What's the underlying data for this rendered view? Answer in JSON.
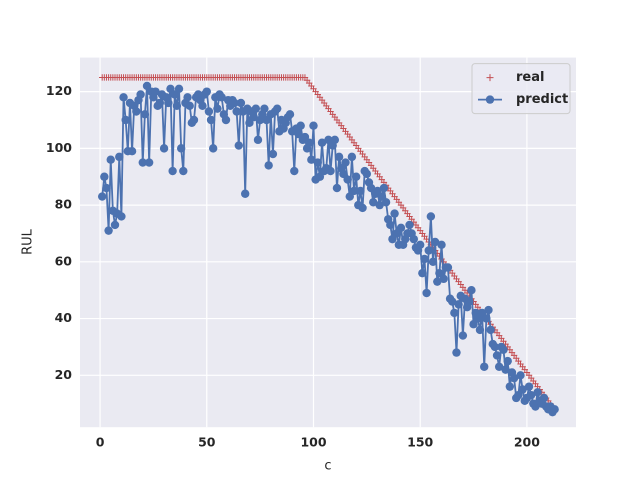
{
  "chart_data": {
    "type": "line",
    "xlabel": "c",
    "ylabel": "RUL",
    "x": [
      1,
      2,
      3,
      4,
      5,
      6,
      7,
      8,
      9,
      10,
      11,
      12,
      13,
      14,
      15,
      16,
      17,
      18,
      19,
      20,
      21,
      22,
      23,
      24,
      25,
      26,
      27,
      28,
      29,
      30,
      31,
      32,
      33,
      34,
      35,
      36,
      37,
      38,
      39,
      40,
      41,
      42,
      43,
      44,
      45,
      46,
      47,
      48,
      49,
      50,
      51,
      52,
      53,
      54,
      55,
      56,
      57,
      58,
      59,
      60,
      61,
      62,
      63,
      64,
      65,
      66,
      67,
      68,
      69,
      70,
      71,
      72,
      73,
      74,
      75,
      76,
      77,
      78,
      79,
      80,
      81,
      82,
      83,
      84,
      85,
      86,
      87,
      88,
      89,
      90,
      91,
      92,
      93,
      94,
      95,
      96,
      97,
      98,
      99,
      100,
      101,
      102,
      103,
      104,
      105,
      106,
      107,
      108,
      109,
      110,
      111,
      112,
      113,
      114,
      115,
      116,
      117,
      118,
      119,
      120,
      121,
      122,
      123,
      124,
      125,
      126,
      127,
      128,
      129,
      130,
      131,
      132,
      133,
      134,
      135,
      136,
      137,
      138,
      139,
      140,
      141,
      142,
      143,
      144,
      145,
      146,
      147,
      148,
      149,
      150,
      151,
      152,
      153,
      154,
      155,
      156,
      157,
      158,
      159,
      160,
      161,
      162,
      163,
      164,
      165,
      166,
      167,
      168,
      169,
      170,
      171,
      172,
      173,
      174,
      175,
      176,
      177,
      178,
      179,
      180,
      181,
      182,
      183,
      184,
      185,
      186,
      187,
      188,
      189,
      190,
      191,
      192,
      193,
      194,
      195,
      196,
      197,
      198,
      199,
      200,
      201,
      202,
      203,
      204,
      205,
      206,
      207,
      208,
      209,
      210,
      211,
      212,
      213
    ],
    "series": [
      {
        "name": "real",
        "color": "#c44e52",
        "marker": "plus",
        "values": [
          125,
          125,
          125,
          125,
          125,
          125,
          125,
          125,
          125,
          125,
          125,
          125,
          125,
          125,
          125,
          125,
          125,
          125,
          125,
          125,
          125,
          125,
          125,
          125,
          125,
          125,
          125,
          125,
          125,
          125,
          125,
          125,
          125,
          125,
          125,
          125,
          125,
          125,
          125,
          125,
          125,
          125,
          125,
          125,
          125,
          125,
          125,
          125,
          125,
          125,
          125,
          125,
          125,
          125,
          125,
          125,
          125,
          125,
          125,
          125,
          125,
          125,
          125,
          125,
          125,
          125,
          125,
          125,
          125,
          125,
          125,
          125,
          125,
          125,
          125,
          125,
          125,
          125,
          125,
          125,
          125,
          125,
          125,
          125,
          125,
          125,
          125,
          125,
          125,
          125,
          125,
          125,
          125,
          125,
          125,
          125,
          124,
          123,
          122,
          121,
          120,
          119,
          118,
          117,
          116,
          115,
          114,
          113,
          112,
          111,
          110,
          109,
          108,
          107,
          106,
          105,
          104,
          103,
          102,
          101,
          100,
          99,
          98,
          97,
          96,
          95,
          94,
          93,
          92,
          91,
          90,
          89,
          88,
          87,
          86,
          85,
          84,
          83,
          82,
          81,
          80,
          79,
          78,
          77,
          76,
          75,
          74,
          73,
          72,
          71,
          70,
          69,
          68,
          67,
          66,
          65,
          64,
          63,
          62,
          61,
          60,
          59,
          58,
          57,
          56,
          55,
          54,
          53,
          52,
          51,
          50,
          49,
          48,
          47,
          46,
          45,
          44,
          43,
          42,
          41,
          40,
          39,
          38,
          37,
          36,
          35,
          34,
          33,
          32,
          31,
          30,
          29,
          28,
          27,
          26,
          25,
          24,
          23,
          22,
          21,
          20,
          19,
          18,
          17,
          16,
          15,
          14,
          13,
          12,
          11,
          10,
          9,
          8
        ]
      },
      {
        "name": "predict",
        "color": "#4c72b0",
        "marker": "circle",
        "values": [
          83,
          90,
          86,
          71,
          96,
          78,
          73,
          77,
          97,
          76,
          118,
          110,
          99,
          116,
          99,
          115,
          113,
          117,
          119,
          95,
          112,
          122,
          95,
          120,
          118,
          120,
          115,
          116,
          119,
          100,
          118,
          116,
          121,
          92,
          119,
          115,
          121,
          100,
          92,
          116,
          118,
          115,
          109,
          110,
          118,
          119,
          117,
          115,
          119,
          120,
          113,
          110,
          100,
          118,
          114,
          119,
          118,
          112,
          110,
          117,
          115,
          117,
          116,
          113,
          101,
          116,
          113,
          84,
          114,
          109,
          113,
          111,
          114,
          103,
          110,
          112,
          114,
          110,
          94,
          112,
          98,
          113,
          114,
          106,
          110,
          107,
          109,
          111,
          112,
          106,
          92,
          107,
          105,
          108,
          103,
          104,
          100,
          102,
          96,
          108,
          89,
          95,
          90,
          102,
          92,
          93,
          103,
          92,
          101,
          103,
          86,
          97,
          93,
          91,
          95,
          89,
          83,
          97,
          85,
          90,
          80,
          85,
          79,
          92,
          91,
          88,
          86,
          81,
          84,
          85,
          80,
          83,
          86,
          81,
          75,
          73,
          68,
          77,
          70,
          66,
          72,
          66,
          68,
          70,
          73,
          70,
          68,
          65,
          64,
          66,
          56,
          61,
          49,
          64,
          76,
          60,
          67,
          53,
          56,
          66,
          54,
          58,
          58,
          47,
          46,
          42,
          28,
          45,
          48,
          34,
          47,
          44,
          46,
          50,
          38,
          42,
          40,
          36,
          42,
          23,
          40,
          43,
          36,
          31,
          30,
          27,
          23,
          30,
          29,
          22,
          25,
          16,
          21,
          19,
          12,
          13,
          20,
          15,
          11,
          12,
          16,
          13,
          10,
          9,
          14,
          11,
          10,
          12,
          9,
          8,
          9,
          7,
          8
        ]
      }
    ],
    "xlim": [
      -9.4,
      223
    ],
    "ylim": [
      1.7,
      132
    ],
    "xticks": [
      0,
      50,
      100,
      150,
      200
    ],
    "yticks": [
      20,
      40,
      60,
      80,
      100,
      120
    ],
    "grid": true,
    "legend": "upper right"
  }
}
